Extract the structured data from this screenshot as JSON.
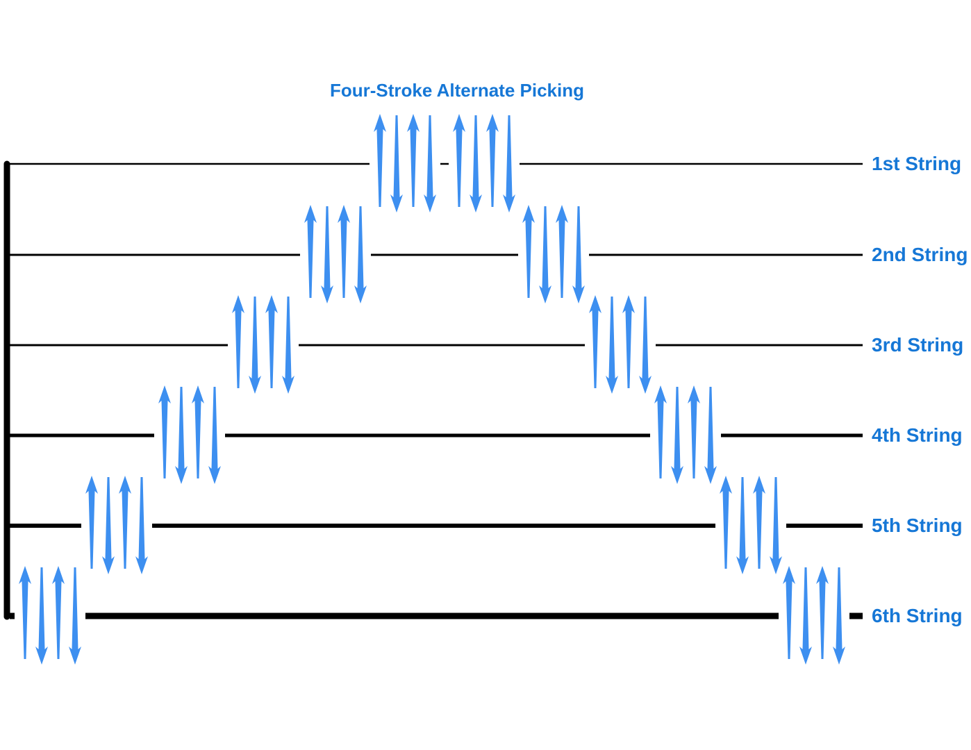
{
  "title": "Four-Stroke Alternate Picking",
  "colors": {
    "arrow": "#3d8ff0",
    "label": "#1677d6",
    "line": "#000000"
  },
  "strings": [
    {
      "label": "1st String"
    },
    {
      "label": "2nd String"
    },
    {
      "label": "3rd String"
    },
    {
      "label": "4th String"
    },
    {
      "label": "5th String"
    },
    {
      "label": "6th String"
    }
  ],
  "stroke_pattern": [
    "up",
    "down",
    "up",
    "down"
  ],
  "sequence": [
    6,
    5,
    4,
    3,
    2,
    1,
    1,
    2,
    3,
    4,
    5,
    6
  ]
}
